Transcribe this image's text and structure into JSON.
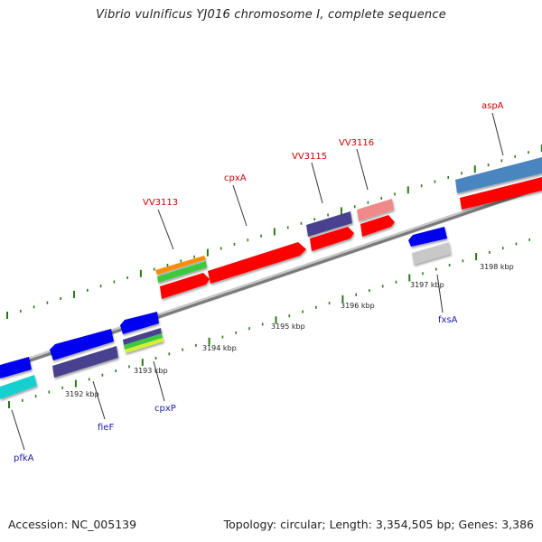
{
  "title": "Vibrio vulnificus YJ016 chromosome I, complete sequence",
  "footer": {
    "accession": "Accession: NC_005139",
    "summary": "Topology: circular; Length: 3,354,505 bp; Genes: 3,386"
  },
  "scale_labels": [
    "3192 kbp",
    "3193 kbp",
    "3194 kbp",
    "3195 kbp",
    "3196 kbp",
    "3197 kbp",
    "3198 kbp"
  ],
  "gene_labels": {
    "top": [
      "VV3113",
      "cpxA",
      "VV3115",
      "VV3116",
      "aspA"
    ],
    "bottom": [
      "pfkA",
      "fieF",
      "cpxP",
      "fxsA"
    ]
  },
  "colors": {
    "backbone": "#8c8c8c",
    "tick": "#2a7a14",
    "cds_forward": "#ff0000",
    "cds_reverse": "#0000f0",
    "label_top": "#cc0000",
    "label_bottom": "#1a1aa8"
  }
}
